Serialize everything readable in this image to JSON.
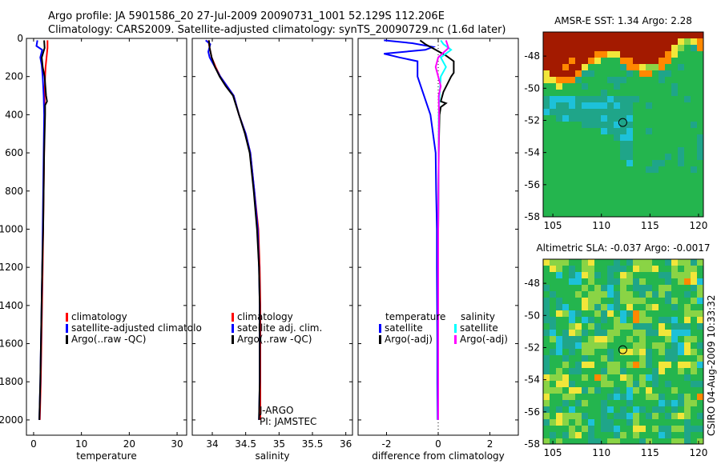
{
  "colors": {
    "red": "#ff0000",
    "blue": "#0000ff",
    "black": "#000000",
    "cyan": "#00ffff",
    "magenta": "#ff00ff",
    "map_deep_red": "#a31a00",
    "map_orange": "#ff8800",
    "map_yellow": "#f2e63a",
    "map_light_green": "#8ad445",
    "map_green": "#24b54e",
    "map_teal": "#1fa589",
    "map_cyan": "#1dc1d9",
    "map_light_blue": "#2ea7e6"
  },
  "header": {
    "line1": "Argo profile: JA 5901586_20 27-Jul-2009 20090731_1001 52.129S 112.206E",
    "line2": "Climatology: CARS2009. Satellite-adjusted climatology: synTS_20090729.nc (1.6d later)"
  },
  "side_stamp": "CSIRO 04-Aug-2009 10:33:32",
  "chart_data": [
    {
      "id": "temperature",
      "type": "line",
      "xlabel": "temperature",
      "xlim": [
        -1.5,
        32
      ],
      "ylim": [
        2080,
        0
      ],
      "xticks": [
        {
          "v": 0,
          "t": "0"
        },
        {
          "v": 10,
          "t": "10"
        },
        {
          "v": 20,
          "t": "20"
        },
        {
          "v": 30,
          "t": "30"
        }
      ],
      "yticks": [
        {
          "v": 0,
          "t": "0"
        },
        {
          "v": 200,
          "t": "200"
        },
        {
          "v": 400,
          "t": "400"
        },
        {
          "v": 600,
          "t": "600"
        },
        {
          "v": 800,
          "t": "800"
        },
        {
          "v": 1000,
          "t": "1000"
        },
        {
          "v": 1200,
          "t": "1200"
        },
        {
          "v": 1400,
          "t": "1400"
        },
        {
          "v": 1600,
          "t": "1600"
        },
        {
          "v": 1800,
          "t": "1800"
        },
        {
          "v": 2000,
          "t": "2000"
        }
      ],
      "legend": {
        "position": "middle-right",
        "entries": [
          {
            "label": "climatology",
            "color": "red"
          },
          {
            "label": "satellite-adjusted climatolo",
            "color": "blue"
          },
          {
            "label": "Argo(..raw -QC)",
            "color": "black"
          }
        ]
      },
      "series": [
        {
          "name": "climatology",
          "color": "red",
          "points": [
            [
              2.9,
              10
            ],
            [
              2.9,
              50
            ],
            [
              2.7,
              100
            ],
            [
              2.5,
              150
            ],
            [
              2.4,
              200
            ],
            [
              2.3,
              300
            ],
            [
              2.3,
              400
            ],
            [
              2.2,
              600
            ],
            [
              2.1,
              800
            ],
            [
              2.0,
              1000
            ],
            [
              1.9,
              1200
            ],
            [
              1.7,
              1500
            ],
            [
              1.5,
              1800
            ],
            [
              1.3,
              2000
            ]
          ]
        },
        {
          "name": "satellite-adjusted climatology",
          "color": "blue",
          "points": [
            [
              0.8,
              10
            ],
            [
              0.6,
              40
            ],
            [
              1.8,
              60
            ],
            [
              1.4,
              100
            ],
            [
              1.7,
              140
            ],
            [
              1.9,
              200
            ],
            [
              2.1,
              300
            ],
            [
              2.2,
              400
            ],
            [
              2.1,
              600
            ],
            [
              2.0,
              800
            ],
            [
              1.9,
              1000
            ],
            [
              1.8,
              1200
            ],
            [
              1.6,
              1500
            ],
            [
              1.4,
              1800
            ],
            [
              1.2,
              2000
            ]
          ]
        },
        {
          "name": "Argo(..raw -QC)",
          "color": "black",
          "points": [
            [
              2.2,
              10
            ],
            [
              2.3,
              50
            ],
            [
              1.7,
              100
            ],
            [
              1.9,
              150
            ],
            [
              2.3,
              200
            ],
            [
              2.6,
              300
            ],
            [
              2.8,
              330
            ],
            [
              2.4,
              350
            ],
            [
              2.4,
              400
            ],
            [
              2.3,
              500
            ],
            [
              2.2,
              600
            ],
            [
              2.1,
              800
            ],
            [
              2.0,
              1000
            ],
            [
              1.8,
              1200
            ],
            [
              1.6,
              1500
            ],
            [
              1.4,
              1800
            ],
            [
              1.2,
              2000
            ]
          ]
        }
      ]
    },
    {
      "id": "salinity",
      "type": "line",
      "xlabel": "salinity",
      "xlim": [
        33.7,
        36.1
      ],
      "ylim": [
        2080,
        0
      ],
      "xticks": [
        {
          "v": 34,
          "t": "34"
        },
        {
          "v": 34.5,
          "t": "34.5"
        },
        {
          "v": 35,
          "t": "35"
        },
        {
          "v": 35.5,
          "t": "35.5"
        },
        {
          "v": 36,
          "t": "36"
        }
      ],
      "yticks": [
        {
          "v": 0,
          "t": ""
        },
        {
          "v": 200,
          "t": ""
        },
        {
          "v": 400,
          "t": ""
        },
        {
          "v": 600,
          "t": ""
        },
        {
          "v": 800,
          "t": ""
        },
        {
          "v": 1000,
          "t": ""
        },
        {
          "v": 1200,
          "t": ""
        },
        {
          "v": 1400,
          "t": ""
        },
        {
          "v": 1600,
          "t": ""
        },
        {
          "v": 1800,
          "t": ""
        },
        {
          "v": 2000,
          "t": ""
        }
      ],
      "legend": {
        "position": "middle-right",
        "entries": [
          {
            "label": "climatology",
            "color": "red"
          },
          {
            "label": "satellite adj. clim.",
            "color": "blue"
          },
          {
            "label": "Argo(..raw -QC)",
            "color": "black"
          }
        ]
      },
      "annotations": [
        "J-ARGO",
        "PI: JAMSTEC"
      ],
      "series": [
        {
          "name": "climatology",
          "color": "red",
          "points": [
            [
              33.94,
              10
            ],
            [
              33.96,
              50
            ],
            [
              33.99,
              100
            ],
            [
              34.05,
              150
            ],
            [
              34.12,
              200
            ],
            [
              34.22,
              250
            ],
            [
              34.32,
              300
            ],
            [
              34.4,
              400
            ],
            [
              34.5,
              500
            ],
            [
              34.57,
              600
            ],
            [
              34.63,
              800
            ],
            [
              34.69,
              1000
            ],
            [
              34.71,
              1200
            ],
            [
              34.72,
              1400
            ],
            [
              34.72,
              1600
            ],
            [
              34.72,
              1800
            ],
            [
              34.72,
              2000
            ]
          ]
        },
        {
          "name": "satellite adj. clim.",
          "color": "blue",
          "points": [
            [
              33.9,
              10
            ],
            [
              33.97,
              30
            ],
            [
              33.94,
              70
            ],
            [
              33.96,
              100
            ],
            [
              34.04,
              150
            ],
            [
              34.12,
              200
            ],
            [
              34.22,
              250
            ],
            [
              34.32,
              300
            ],
            [
              34.4,
              400
            ],
            [
              34.5,
              500
            ],
            [
              34.57,
              600
            ],
            [
              34.63,
              800
            ],
            [
              34.68,
              1000
            ],
            [
              34.7,
              1200
            ],
            [
              34.71,
              1400
            ],
            [
              34.71,
              1600
            ],
            [
              34.71,
              1800
            ],
            [
              34.7,
              2000
            ]
          ]
        },
        {
          "name": "Argo(..raw -QC)",
          "color": "black",
          "points": [
            [
              33.95,
              10
            ],
            [
              33.96,
              50
            ],
            [
              33.99,
              100
            ],
            [
              34.04,
              150
            ],
            [
              34.11,
              200
            ],
            [
              34.2,
              250
            ],
            [
              34.31,
              300
            ],
            [
              34.4,
              400
            ],
            [
              34.49,
              500
            ],
            [
              34.56,
              600
            ],
            [
              34.62,
              800
            ],
            [
              34.67,
              1000
            ],
            [
              34.7,
              1200
            ],
            [
              34.71,
              1400
            ],
            [
              34.71,
              1600
            ],
            [
              34.71,
              1800
            ],
            [
              34.7,
              2000
            ]
          ]
        }
      ]
    },
    {
      "id": "difference",
      "type": "line",
      "xlabel": "difference from climatology",
      "xlim": [
        -3.1,
        3.1
      ],
      "ylim": [
        2080,
        0
      ],
      "xticks": [
        {
          "v": -2,
          "t": "-2"
        },
        {
          "v": 0,
          "t": "0"
        },
        {
          "v": 2,
          "t": "2"
        }
      ],
      "yticks": [
        {
          "v": 0,
          "t": ""
        },
        {
          "v": 200,
          "t": ""
        },
        {
          "v": 400,
          "t": ""
        },
        {
          "v": 600,
          "t": ""
        },
        {
          "v": 800,
          "t": ""
        },
        {
          "v": 1000,
          "t": ""
        },
        {
          "v": 1200,
          "t": ""
        },
        {
          "v": 1400,
          "t": ""
        },
        {
          "v": 1600,
          "t": ""
        },
        {
          "v": 1800,
          "t": ""
        },
        {
          "v": 2000,
          "t": ""
        }
      ],
      "legend": {
        "position": "middle",
        "groups": [
          {
            "title": "temperature",
            "entries": [
              {
                "label": "satellite",
                "color": "blue"
              },
              {
                "label": "Argo(-adj)",
                "color": "black"
              }
            ]
          },
          {
            "title": "salinity",
            "entries": [
              {
                "label": "satellite",
                "color": "cyan"
              },
              {
                "label": "Argo(-adj)",
                "color": "magenta"
              }
            ]
          }
        ]
      },
      "series": [
        {
          "name": "temperature satellite",
          "color": "blue",
          "points": [
            [
              -2.1,
              10
            ],
            [
              -1.0,
              25
            ],
            [
              -0.2,
              45
            ],
            [
              -0.5,
              60
            ],
            [
              -2.1,
              80
            ],
            [
              -1.5,
              100
            ],
            [
              -0.8,
              120
            ],
            [
              -0.8,
              200
            ],
            [
              -0.3,
              400
            ],
            [
              -0.1,
              600
            ],
            [
              -0.08,
              800
            ],
            [
              -0.05,
              1000
            ],
            [
              -0.05,
              1200
            ],
            [
              -0.04,
              1400
            ],
            [
              -0.03,
              1600
            ],
            [
              -0.03,
              1800
            ],
            [
              -0.02,
              2000
            ]
          ]
        },
        {
          "name": "temperature Argo(-adj)",
          "color": "black",
          "points": [
            [
              -0.7,
              10
            ],
            [
              -0.5,
              30
            ],
            [
              -0.1,
              60
            ],
            [
              0.3,
              90
            ],
            [
              0.6,
              120
            ],
            [
              0.6,
              180
            ],
            [
              0.5,
              200
            ],
            [
              0.2,
              280
            ],
            [
              0.1,
              330
            ],
            [
              0.3,
              340
            ],
            [
              0.1,
              360
            ],
            [
              0.05,
              400
            ],
            [
              0.02,
              600
            ],
            [
              0.0,
              1000
            ],
            [
              0.0,
              1500
            ],
            [
              0.0,
              2000
            ]
          ]
        },
        {
          "name": "salinity satellite",
          "color": "cyan",
          "points": [
            [
              0.1,
              10
            ],
            [
              0.2,
              30
            ],
            [
              0.5,
              60
            ],
            [
              0.1,
              100
            ],
            [
              0.3,
              150
            ],
            [
              0.1,
              200
            ],
            [
              0.05,
              300
            ],
            [
              0.02,
              400
            ],
            [
              0.02,
              600
            ],
            [
              0.01,
              800
            ],
            [
              0.0,
              1000
            ],
            [
              0.0,
              1500
            ],
            [
              0.0,
              2000
            ]
          ]
        },
        {
          "name": "salinity Argo(-adj)",
          "color": "magenta",
          "points": [
            [
              0.3,
              10
            ],
            [
              0.4,
              50
            ],
            [
              0.0,
              100
            ],
            [
              -0.1,
              150
            ],
            [
              0.0,
              200
            ],
            [
              0.1,
              250
            ],
            [
              0.02,
              300
            ],
            [
              0.03,
              400
            ],
            [
              0.02,
              600
            ],
            [
              0.01,
              800
            ],
            [
              0.0,
              1000
            ],
            [
              0.0,
              1500
            ],
            [
              0.0,
              2000
            ]
          ]
        }
      ]
    },
    {
      "id": "sst-map",
      "type": "heatmap",
      "title": "AMSR-E SST: 1.34 Argo: 2.28",
      "xlim": [
        104,
        120.5
      ],
      "ylim": [
        -58,
        -46.5
      ],
      "xticks": [
        {
          "v": 105,
          "t": "105"
        },
        {
          "v": 110,
          "t": "110"
        },
        {
          "v": 115,
          "t": "115"
        },
        {
          "v": 120,
          "t": "120"
        }
      ],
      "yticks": [
        {
          "v": -48,
          "t": "-48"
        },
        {
          "v": -50,
          "t": "-50"
        },
        {
          "v": -52,
          "t": "-52"
        },
        {
          "v": -54,
          "t": "-54"
        },
        {
          "v": -56,
          "t": "-56"
        },
        {
          "v": -58,
          "t": "-58"
        }
      ],
      "marker": {
        "lon": 112.2,
        "lat": -52.13
      }
    },
    {
      "id": "sla-map",
      "type": "heatmap",
      "title": "Altimetric SLA: -0.037 Argo: -0.0017",
      "xlim": [
        104,
        120.5
      ],
      "ylim": [
        -58,
        -46.5
      ],
      "xticks": [
        {
          "v": 105,
          "t": "105"
        },
        {
          "v": 110,
          "t": "110"
        },
        {
          "v": 115,
          "t": "115"
        },
        {
          "v": 120,
          "t": "120"
        }
      ],
      "yticks": [
        {
          "v": -48,
          "t": "-48"
        },
        {
          "v": -50,
          "t": "-50"
        },
        {
          "v": -52,
          "t": "-52"
        },
        {
          "v": -54,
          "t": "-54"
        },
        {
          "v": -56,
          "t": "-56"
        },
        {
          "v": -58,
          "t": "-58"
        }
      ],
      "marker": {
        "lon": 112.2,
        "lat": -52.13
      }
    }
  ]
}
